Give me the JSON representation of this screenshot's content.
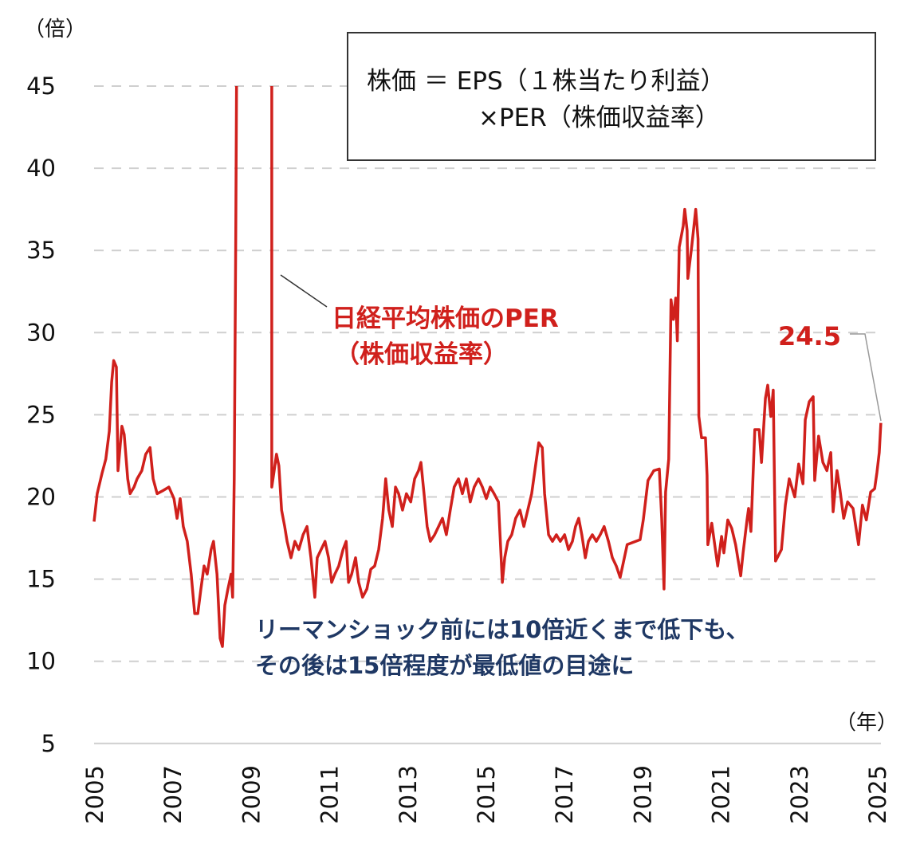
{
  "chart_data": {
    "type": "line",
    "ylabel_unit": "（倍）",
    "xlabel_unit": "（年）",
    "ylim": [
      5,
      45
    ],
    "yticks": [
      "5",
      "10",
      "15",
      "20",
      "25",
      "30",
      "35",
      "40",
      "45"
    ],
    "xlim": [
      2005,
      2025.1
    ],
    "xticks": [
      "2005",
      "2007",
      "2009",
      "2011",
      "2013",
      "2015",
      "2017",
      "2019",
      "2021",
      "2023",
      "2025"
    ],
    "grid": "horizontal-dashed",
    "line_color": "#d0201c",
    "series": [
      {
        "name": "日経平均株価のPER（株価収益率）",
        "points": [
          [
            2005.0,
            18.5
          ],
          [
            2005.08,
            20.2
          ],
          [
            2005.2,
            21.4
          ],
          [
            2005.3,
            22.3
          ],
          [
            2005.39,
            24.0
          ],
          [
            2005.45,
            27.0
          ],
          [
            2005.5,
            28.3
          ],
          [
            2005.57,
            27.9
          ],
          [
            2005.61,
            21.6
          ],
          [
            2005.71,
            24.3
          ],
          [
            2005.77,
            23.8
          ],
          [
            2005.86,
            21.1
          ],
          [
            2005.92,
            20.2
          ],
          [
            2006.02,
            20.6
          ],
          [
            2006.1,
            21.1
          ],
          [
            2006.22,
            21.6
          ],
          [
            2006.32,
            22.6
          ],
          [
            2006.43,
            23.0
          ],
          [
            2006.51,
            21.1
          ],
          [
            2006.61,
            20.2
          ],
          [
            2006.77,
            20.4
          ],
          [
            2006.91,
            20.6
          ],
          [
            2007.04,
            19.9
          ],
          [
            2007.12,
            18.7
          ],
          [
            2007.2,
            19.9
          ],
          [
            2007.28,
            18.2
          ],
          [
            2007.38,
            17.3
          ],
          [
            2007.48,
            15.3
          ],
          [
            2007.57,
            12.9
          ],
          [
            2007.65,
            12.9
          ],
          [
            2007.73,
            14.4
          ],
          [
            2007.81,
            15.8
          ],
          [
            2007.89,
            15.3
          ],
          [
            2007.99,
            16.8
          ],
          [
            2008.05,
            17.3
          ],
          [
            2008.14,
            15.3
          ],
          [
            2008.22,
            11.4
          ],
          [
            2008.28,
            10.9
          ],
          [
            2008.34,
            13.4
          ],
          [
            2008.42,
            14.4
          ],
          [
            2008.5,
            15.3
          ],
          [
            2008.54,
            13.9
          ],
          [
            2008.58,
            21.1
          ],
          [
            2008.62,
            35.7
          ],
          [
            2008.64,
            45
          ],
          [
            2009.0,
            null
          ],
          [
            2009.54,
            45
          ],
          [
            2009.54,
            20.6
          ],
          [
            2009.6,
            21.6
          ],
          [
            2009.66,
            22.6
          ],
          [
            2009.72,
            21.9
          ],
          [
            2009.79,
            19.2
          ],
          [
            2009.87,
            18.2
          ],
          [
            2009.93,
            17.3
          ],
          [
            2010.03,
            16.3
          ],
          [
            2010.13,
            17.3
          ],
          [
            2010.23,
            16.8
          ],
          [
            2010.34,
            17.7
          ],
          [
            2010.44,
            18.2
          ],
          [
            2010.54,
            16.3
          ],
          [
            2010.64,
            13.9
          ],
          [
            2010.7,
            16.3
          ],
          [
            2010.8,
            16.8
          ],
          [
            2010.9,
            17.3
          ],
          [
            2010.99,
            16.3
          ],
          [
            2011.07,
            14.8
          ],
          [
            2011.15,
            15.3
          ],
          [
            2011.25,
            15.8
          ],
          [
            2011.36,
            16.8
          ],
          [
            2011.44,
            17.3
          ],
          [
            2011.5,
            14.8
          ],
          [
            2011.58,
            15.3
          ],
          [
            2011.68,
            16.3
          ],
          [
            2011.76,
            14.8
          ],
          [
            2011.86,
            13.9
          ],
          [
            2011.97,
            14.4
          ],
          [
            2012.07,
            15.6
          ],
          [
            2012.17,
            15.8
          ],
          [
            2012.27,
            16.8
          ],
          [
            2012.37,
            18.7
          ],
          [
            2012.45,
            21.1
          ],
          [
            2012.53,
            19.2
          ],
          [
            2012.62,
            18.2
          ],
          [
            2012.7,
            20.6
          ],
          [
            2012.78,
            20.2
          ],
          [
            2012.88,
            19.2
          ],
          [
            2012.98,
            20.2
          ],
          [
            2013.09,
            19.7
          ],
          [
            2013.19,
            21.1
          ],
          [
            2013.29,
            21.6
          ],
          [
            2013.35,
            22.1
          ],
          [
            2013.43,
            20.2
          ],
          [
            2013.51,
            18.2
          ],
          [
            2013.59,
            17.3
          ],
          [
            2013.7,
            17.7
          ],
          [
            2013.8,
            18.2
          ],
          [
            2013.9,
            18.7
          ],
          [
            2014.0,
            17.7
          ],
          [
            2014.1,
            19.2
          ],
          [
            2014.2,
            20.6
          ],
          [
            2014.31,
            21.1
          ],
          [
            2014.41,
            20.2
          ],
          [
            2014.51,
            21.1
          ],
          [
            2014.61,
            19.7
          ],
          [
            2014.71,
            20.6
          ],
          [
            2014.82,
            21.1
          ],
          [
            2014.92,
            20.6
          ],
          [
            2015.02,
            19.9
          ],
          [
            2015.12,
            20.6
          ],
          [
            2015.22,
            20.2
          ],
          [
            2015.33,
            19.7
          ],
          [
            2015.43,
            14.8
          ],
          [
            2015.49,
            16.3
          ],
          [
            2015.57,
            17.3
          ],
          [
            2015.67,
            17.7
          ],
          [
            2015.77,
            18.7
          ],
          [
            2015.88,
            19.2
          ],
          [
            2015.98,
            18.2
          ],
          [
            2016.08,
            19.2
          ],
          [
            2016.18,
            20.2
          ],
          [
            2016.29,
            22.1
          ],
          [
            2016.36,
            23.3
          ],
          [
            2016.45,
            23.0
          ],
          [
            2016.51,
            20.2
          ],
          [
            2016.61,
            17.7
          ],
          [
            2016.71,
            17.3
          ],
          [
            2016.81,
            17.7
          ],
          [
            2016.91,
            17.3
          ],
          [
            2017.02,
            17.7
          ],
          [
            2017.12,
            16.8
          ],
          [
            2017.22,
            17.3
          ],
          [
            2017.3,
            18.2
          ],
          [
            2017.38,
            18.7
          ],
          [
            2017.46,
            17.7
          ],
          [
            2017.55,
            16.3
          ],
          [
            2017.63,
            17.3
          ],
          [
            2017.73,
            17.7
          ],
          [
            2017.83,
            17.3
          ],
          [
            2017.93,
            17.7
          ],
          [
            2018.03,
            18.2
          ],
          [
            2018.14,
            17.3
          ],
          [
            2018.24,
            16.3
          ],
          [
            2018.34,
            15.8
          ],
          [
            2018.44,
            15.1
          ],
          [
            2018.62,
            17.1
          ],
          [
            2018.95,
            17.4
          ],
          [
            2019.03,
            18.6
          ],
          [
            2019.15,
            21.0
          ],
          [
            2019.3,
            21.6
          ],
          [
            2019.44,
            21.7
          ],
          [
            2019.5,
            18.7
          ],
          [
            2019.56,
            14.4
          ],
          [
            2019.6,
            20.3
          ],
          [
            2019.68,
            22.3
          ],
          [
            2019.74,
            32.0
          ],
          [
            2019.8,
            30.8
          ],
          [
            2019.86,
            32.1
          ],
          [
            2019.9,
            29.5
          ],
          [
            2019.95,
            35.2
          ],
          [
            2020.05,
            36.5
          ],
          [
            2020.09,
            37.5
          ],
          [
            2020.15,
            36.2
          ],
          [
            2020.17,
            33.3
          ],
          [
            2020.27,
            35.3
          ],
          [
            2020.37,
            37.5
          ],
          [
            2020.43,
            35.7
          ],
          [
            2020.45,
            24.9
          ],
          [
            2020.52,
            23.6
          ],
          [
            2020.62,
            23.6
          ],
          [
            2020.66,
            21.3
          ],
          [
            2020.68,
            17.1
          ],
          [
            2020.78,
            18.4
          ],
          [
            2020.93,
            15.8
          ],
          [
            2021.03,
            17.6
          ],
          [
            2021.09,
            16.6
          ],
          [
            2021.19,
            18.6
          ],
          [
            2021.29,
            18.1
          ],
          [
            2021.39,
            17.1
          ],
          [
            2021.52,
            15.2
          ],
          [
            2021.58,
            16.6
          ],
          [
            2021.68,
            18.6
          ],
          [
            2021.72,
            19.3
          ],
          [
            2021.78,
            17.9
          ],
          [
            2021.88,
            24.1
          ],
          [
            2021.99,
            24.1
          ],
          [
            2022.05,
            22.1
          ],
          [
            2022.15,
            26.0
          ],
          [
            2022.21,
            26.8
          ],
          [
            2022.29,
            24.9
          ],
          [
            2022.35,
            26.5
          ],
          [
            2022.41,
            16.1
          ],
          [
            2022.56,
            16.8
          ],
          [
            2022.66,
            19.5
          ],
          [
            2022.76,
            21.1
          ],
          [
            2022.9,
            20.0
          ],
          [
            2023.0,
            22.0
          ],
          [
            2023.11,
            20.8
          ],
          [
            2023.17,
            24.7
          ],
          [
            2023.27,
            25.8
          ],
          [
            2023.37,
            26.1
          ],
          [
            2023.41,
            21.0
          ],
          [
            2023.51,
            23.7
          ],
          [
            2023.62,
            22.1
          ],
          [
            2023.72,
            21.6
          ],
          [
            2023.82,
            22.7
          ],
          [
            2023.88,
            19.1
          ],
          [
            2023.98,
            21.6
          ],
          [
            2024.05,
            20.5
          ],
          [
            2024.15,
            18.7
          ],
          [
            2024.25,
            19.7
          ],
          [
            2024.39,
            19.3
          ],
          [
            2024.53,
            17.1
          ],
          [
            2024.63,
            19.5
          ],
          [
            2024.73,
            18.6
          ],
          [
            2024.84,
            20.3
          ],
          [
            2024.94,
            20.5
          ],
          [
            2025.0,
            21.5
          ],
          [
            2025.06,
            22.7
          ],
          [
            2025.1,
            24.5
          ]
        ]
      }
    ],
    "annotations": {
      "series_label_line1": "日経平均株価のPER",
      "series_label_line2": "（株価収益率）",
      "latest_value": "24.5",
      "note_line1": "リーマンショック前には10倍近くまで低下も、",
      "note_line2": "その後は15倍程度が最低値の目途に",
      "note_color": "#1f3864"
    },
    "formula_box": {
      "line1": "株価 ＝ EPS（１株当たり利益）",
      "line2": "×PER（株価収益率）"
    }
  }
}
